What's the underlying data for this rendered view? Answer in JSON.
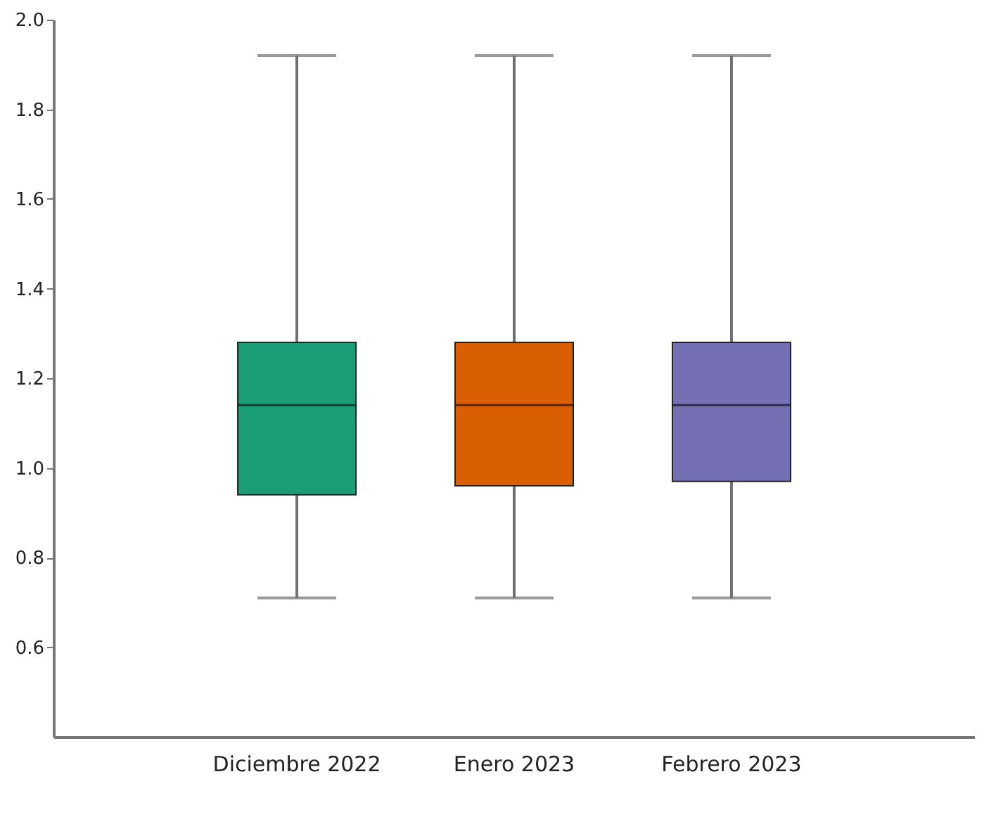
{
  "chart_data": {
    "type": "box",
    "categories": [
      "Diciembre 2022",
      "Enero 2023",
      "Febrero 2023"
    ],
    "boxes": [
      {
        "low": 0.71,
        "q1": 0.94,
        "median": 1.14,
        "q3": 1.28,
        "high": 1.92
      },
      {
        "low": 0.71,
        "q1": 0.96,
        "median": 1.14,
        "q3": 1.28,
        "high": 1.92
      },
      {
        "low": 0.71,
        "q1": 0.97,
        "median": 1.14,
        "q3": 1.28,
        "high": 1.92
      }
    ],
    "colors": [
      "#1b9e77",
      "#d95f02",
      "#7570b3"
    ],
    "ylim": [
      0.4,
      2.0
    ],
    "yticks": [
      0.6,
      0.8,
      {
        "value": 1,
        "label": "1.0"
      },
      1.2,
      1.4,
      1.6,
      1.8,
      {
        "value": 2,
        "label": "2.0"
      }
    ],
    "grid": false,
    "legend": false
  }
}
